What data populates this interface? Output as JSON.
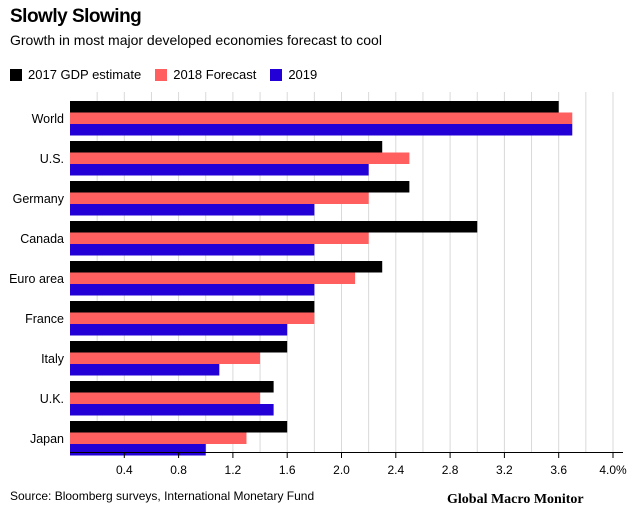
{
  "chart_data": {
    "type": "bar",
    "orientation": "horizontal",
    "title": "Slowly Slowing",
    "subtitle": "Growth in most major developed economies forecast to cool",
    "categories": [
      "World",
      "U.S.",
      "Germany",
      "Canada",
      "Euro area",
      "France",
      "Italy",
      "U.K.",
      "Japan"
    ],
    "series": [
      {
        "name": "2017 GDP estimate",
        "color": "#000000",
        "values": [
          3.6,
          2.3,
          2.5,
          3.0,
          2.3,
          1.8,
          1.6,
          1.5,
          1.6
        ]
      },
      {
        "name": "2018 Forecast",
        "color": "#ff5f5f",
        "values": [
          3.7,
          2.5,
          2.2,
          2.2,
          2.1,
          1.8,
          1.4,
          1.4,
          1.3
        ]
      },
      {
        "name": "2019",
        "color": "#2200d6",
        "values": [
          3.7,
          2.2,
          1.8,
          1.8,
          1.8,
          1.6,
          1.1,
          1.5,
          1.0
        ]
      }
    ],
    "xticks": [
      "0.4",
      "0.8",
      "1.2",
      "1.6",
      "2.0",
      "2.4",
      "2.8",
      "3.2",
      "3.6",
      "4.0%"
    ],
    "xlim": [
      0,
      4.0
    ],
    "grid": true,
    "legend_position": "top-left",
    "source": "Source: Bloomberg surveys, International Monetary Fund",
    "watermark": "Global Macro Monitor"
  }
}
